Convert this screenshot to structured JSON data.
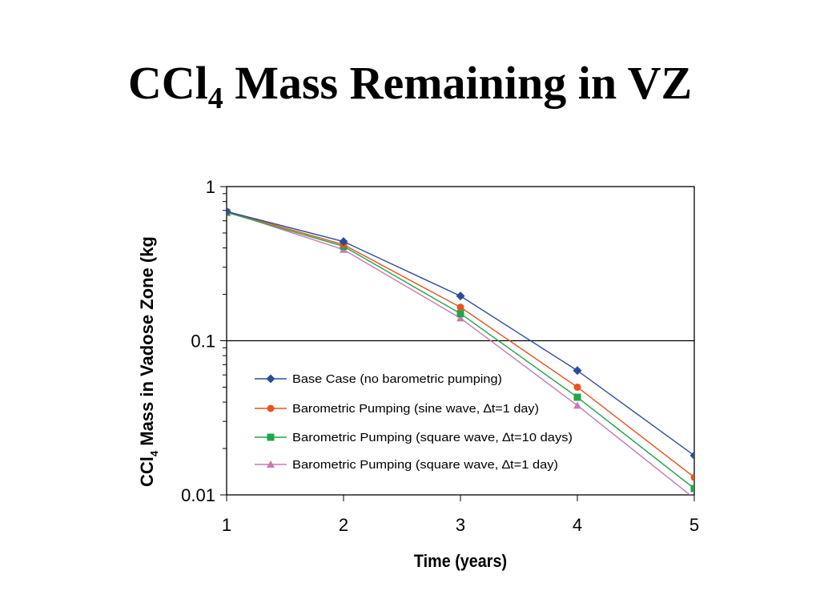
{
  "title": {
    "main_prefix": "CCl",
    "main_sub": "4",
    "main_suffix": " Mass Remaining in VZ"
  },
  "chart_data": {
    "type": "line",
    "x": [
      1,
      2,
      3,
      4,
      5
    ],
    "xticks": [
      "1",
      "2",
      "3",
      "4",
      "5"
    ],
    "yticks": [
      "0.01",
      "0.1",
      "1"
    ],
    "xlabel": "Time (years)",
    "ylabel_prefix": "CCl",
    "ylabel_sub": "4",
    "ylabel_suffix": " Mass in Vadose Zone (kg",
    "ylim": [
      0.01,
      1
    ],
    "xlim": [
      1,
      5
    ],
    "yscale": "log",
    "grid": "major-y at 0.1",
    "legend_position": "lower-left inside plot",
    "series": [
      {
        "name": "Base Case (no barometric pumping)",
        "color": "#2B4C9B",
        "marker": "diamond",
        "values": [
          0.69,
          0.44,
          0.195,
          0.064,
          0.018
        ]
      },
      {
        "name": "Barometric Pumping (sine wave, ∆t=1 day)",
        "color": "#E8531F",
        "marker": "circle",
        "values": [
          0.69,
          0.42,
          0.165,
          0.05,
          0.013
        ]
      },
      {
        "name": "Barometric Pumping (square  wave, ∆t=10 days)",
        "color": "#1FA64A",
        "marker": "square",
        "values": [
          0.68,
          0.41,
          0.15,
          0.043,
          0.011
        ]
      },
      {
        "name": "Barometric Pumping (square  wave, ∆t=1 day)",
        "color": "#C879B0",
        "marker": "triangle",
        "values": [
          0.69,
          0.39,
          0.14,
          0.038,
          0.0095
        ]
      }
    ]
  }
}
